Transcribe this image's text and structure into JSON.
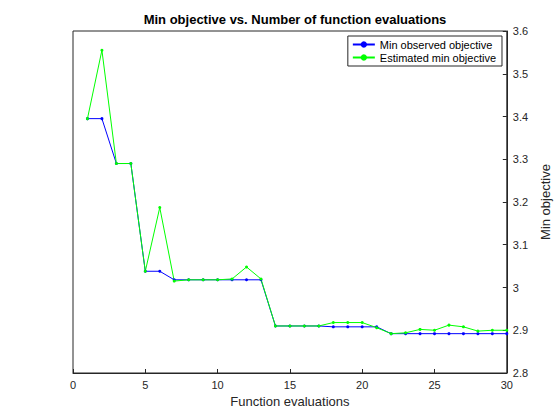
{
  "chart_data": {
    "type": "line",
    "title": "Min objective vs. Number of function evaluations",
    "x_label": "Function evaluations",
    "y_label": "Min objective",
    "x": [
      1,
      2,
      3,
      4,
      5,
      6,
      7,
      8,
      9,
      10,
      11,
      12,
      13,
      14,
      15,
      16,
      17,
      18,
      19,
      20,
      21,
      22,
      23,
      24,
      25,
      26,
      27,
      28,
      29,
      30
    ],
    "series": [
      {
        "name": "Min observed objective",
        "color": "#0000ff",
        "marker": "point",
        "line_style": "solid",
        "values": [
          3.395,
          3.395,
          3.29,
          3.29,
          3.038,
          3.038,
          3.018,
          3.018,
          3.018,
          3.018,
          3.018,
          3.018,
          3.018,
          2.91,
          2.91,
          2.91,
          2.91,
          2.908,
          2.908,
          2.908,
          2.908,
          2.892,
          2.892,
          2.892,
          2.892,
          2.892,
          2.892,
          2.892,
          2.892,
          2.892
        ]
      },
      {
        "name": "Estimated min objective",
        "color": "#00ff00",
        "marker": "point",
        "line_style": "solid",
        "values": [
          3.395,
          3.555,
          3.29,
          3.29,
          3.038,
          3.187,
          3.015,
          3.018,
          3.018,
          3.018,
          3.02,
          3.048,
          3.02,
          2.91,
          2.91,
          2.91,
          2.91,
          2.918,
          2.918,
          2.918,
          2.906,
          2.892,
          2.894,
          2.902,
          2.9,
          2.912,
          2.908,
          2.898,
          2.9,
          2.9
        ]
      }
    ],
    "xlim": [
      0,
      30
    ],
    "xticks": [
      0,
      5,
      10,
      15,
      20,
      25,
      30
    ],
    "ylim": [
      2.8,
      3.6
    ],
    "yticks": [
      2.8,
      2.9,
      3,
      3.1,
      3.2,
      3.3,
      3.4,
      3.5,
      3.6
    ],
    "grid": false,
    "legend": "upper right"
  }
}
